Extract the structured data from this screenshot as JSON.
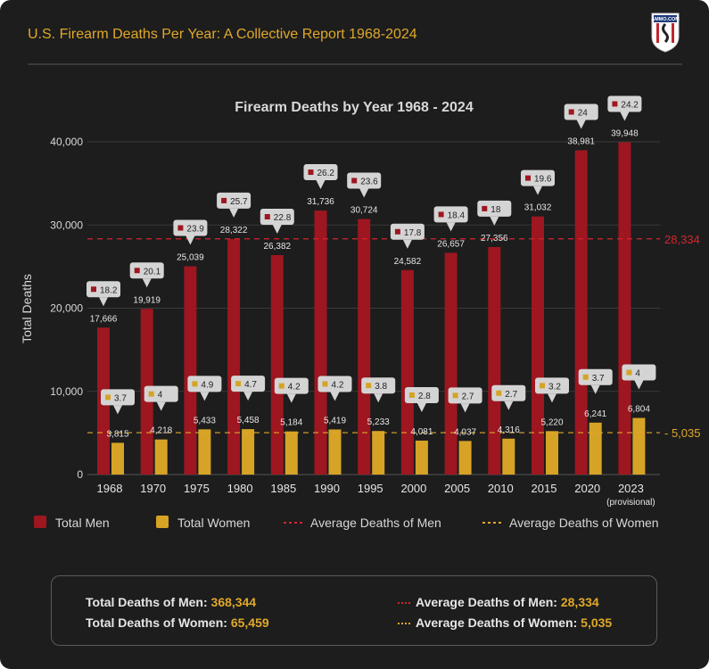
{
  "header": {
    "title": "U.S. Firearm Deaths Per Year: A Collective Report 1968-2024",
    "logo_text": "AMMO.COM"
  },
  "colors": {
    "men": "#9e1620",
    "women": "#d6a326",
    "men_avg": "#d6242e",
    "women_avg": "#e0a82a",
    "background": "#1d1d1d"
  },
  "chart_data": {
    "type": "bar",
    "title": "Firearm Deaths by Year 1968 - 2024",
    "ylabel": "Total Deaths",
    "xlabel": "",
    "ylim": [
      0,
      40000
    ],
    "yticks": [
      0,
      10000,
      20000,
      30000,
      40000
    ],
    "ytick_labels": [
      "0",
      "10,000",
      "20,000",
      "30,000",
      "40,000"
    ],
    "grid": true,
    "legend_position": "bottom",
    "categories": [
      "1968",
      "1970",
      "1975",
      "1980",
      "1985",
      "1990",
      "1995",
      "2000",
      "2005",
      "2010",
      "2015",
      "2020",
      "2023"
    ],
    "category_sublabels": {
      "2023": "(provisional)"
    },
    "series": [
      {
        "name": "Total Men",
        "values": [
          17666,
          19919,
          25039,
          28322,
          26382,
          31736,
          30724,
          24582,
          26657,
          27356,
          31032,
          38981,
          39948
        ],
        "value_labels": [
          "17,666",
          "19,919",
          "25,039",
          "28,322",
          "26,382",
          "31,736",
          "30,724",
          "24,582",
          "26,657",
          "27,356",
          "31,032",
          "38,981",
          "39,948"
        ],
        "callouts": [
          "18.2",
          "20.1",
          "23.9",
          "25.7",
          "22.8",
          "26.2",
          "23.6",
          "17.8",
          "18.4",
          "18",
          "19.6",
          "24",
          "24.2"
        ]
      },
      {
        "name": "Total Women",
        "values": [
          3815,
          4218,
          5433,
          5458,
          5184,
          5419,
          5233,
          4081,
          4037,
          4316,
          5220,
          6241,
          6804
        ],
        "value_labels": [
          "3,815",
          "4,218",
          "5,433",
          "5,458",
          "5,184",
          "5,419",
          "5,233",
          "4,081",
          "4,037",
          "4,316",
          "5,220",
          "6,241",
          "6,804"
        ],
        "callouts": [
          "3.7",
          "4",
          "4.9",
          "4.7",
          "4.2",
          "4.2",
          "3.8",
          "2.8",
          "2.7",
          "2.7",
          "3.2",
          "3.7",
          "4"
        ]
      }
    ],
    "reference_lines": [
      {
        "name": "Average Deaths of Men",
        "value": 28334,
        "label": "28,334"
      },
      {
        "name": "Average Deaths of Women",
        "value": 5035,
        "label": "- 5,035"
      }
    ]
  },
  "summary": {
    "total_men_label": "Total Deaths of Men:",
    "total_men_value": "368,344",
    "total_women_label": "Total Deaths of Women:",
    "total_women_value": "65,459",
    "avg_men_label": "Average Deaths of Men:",
    "avg_men_value": "28,334",
    "avg_women_label": "Average Deaths of Women:",
    "avg_women_value": "5,035"
  }
}
